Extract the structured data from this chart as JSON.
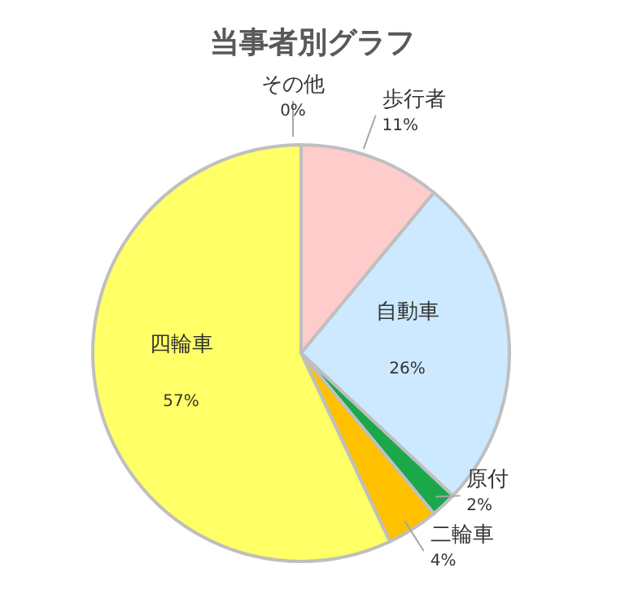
{
  "chart_data": {
    "type": "pie",
    "title": "当事者別グラフ",
    "categories": [
      "歩行者",
      "自動車",
      "原付",
      "二輪車",
      "四輪車",
      "その他"
    ],
    "values": [
      11,
      26,
      2,
      4,
      57,
      0
    ],
    "value_labels": [
      "11%",
      "26%",
      "2%",
      "4%",
      "57%",
      "0%"
    ],
    "colors": [
      "#ffcccc",
      "#cce9ff",
      "#1aa84a",
      "#ffc000",
      "#ffff66",
      "#a5a5a5"
    ],
    "legend": false
  }
}
